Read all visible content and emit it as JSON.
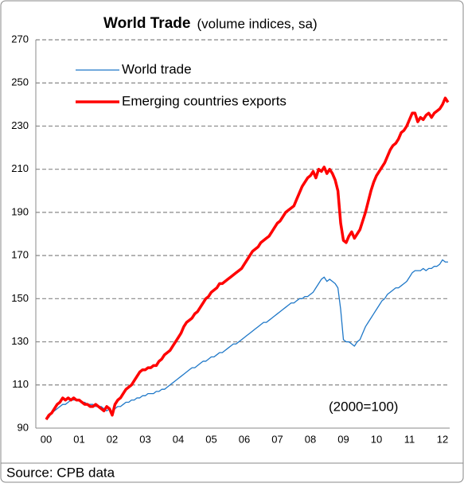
{
  "chart_data": {
    "type": "line",
    "title": "World Trade",
    "subtitle": "(volume indices, sa)",
    "annotation": "(2000=100)",
    "source": "Source: CPB data",
    "categories": [
      "00",
      null,
      null,
      null,
      null,
      null,
      null,
      null,
      null,
      null,
      null,
      null,
      "01",
      null,
      null,
      null,
      null,
      null,
      null,
      null,
      null,
      null,
      null,
      null,
      "02",
      null,
      null,
      null,
      null,
      null,
      null,
      null,
      null,
      null,
      null,
      null,
      "03",
      null,
      null,
      null,
      null,
      null,
      null,
      null,
      null,
      null,
      null,
      null,
      "04",
      null,
      null,
      null,
      null,
      null,
      null,
      null,
      null,
      null,
      null,
      null,
      "05",
      null,
      null,
      null,
      null,
      null,
      null,
      null,
      null,
      null,
      null,
      null,
      "06",
      null,
      null,
      null,
      null,
      null,
      null,
      null,
      null,
      null,
      null,
      null,
      "07",
      null,
      null,
      null,
      null,
      null,
      null,
      null,
      null,
      null,
      null,
      null,
      "08",
      null,
      null,
      null,
      null,
      null,
      null,
      null,
      null,
      null,
      null,
      null,
      "09",
      null,
      null,
      null,
      null,
      null,
      null,
      null,
      null,
      null,
      null,
      null,
      "10",
      null,
      null,
      null,
      null,
      null,
      null,
      null,
      null,
      null,
      null,
      null,
      "11",
      null,
      null,
      null,
      null,
      null,
      null,
      null,
      null,
      null,
      null,
      null,
      "12",
      null,
      null
    ],
    "series": [
      {
        "name": "World trade",
        "color": "#1f78c8",
        "width": 1.3,
        "values": [
          94,
          95,
          97,
          98,
          99,
          100,
          101,
          101,
          102,
          103,
          103,
          103,
          103,
          102,
          102,
          101,
          101,
          101,
          100,
          100,
          100,
          99,
          98,
          99,
          97,
          99,
          100,
          100,
          101,
          102,
          102,
          103,
          103,
          104,
          104,
          105,
          105,
          106,
          106,
          106,
          107,
          107,
          108,
          108,
          109,
          110,
          111,
          112,
          113,
          114,
          115,
          116,
          117,
          118,
          118,
          119,
          120,
          121,
          121,
          122,
          123,
          123,
          124,
          125,
          125,
          126,
          127,
          128,
          129,
          129,
          130,
          131,
          132,
          133,
          134,
          135,
          136,
          137,
          138,
          139,
          139,
          140,
          141,
          142,
          143,
          144,
          145,
          146,
          147,
          148,
          148,
          149,
          150,
          150,
          151,
          151,
          152,
          153,
          155,
          157,
          159,
          160,
          158,
          159,
          158,
          157,
          155,
          145,
          131,
          130,
          130,
          129,
          128,
          130,
          131,
          134,
          137,
          139,
          141,
          143,
          145,
          147,
          149,
          150,
          152,
          153,
          154,
          155,
          155,
          156,
          157,
          158,
          160,
          162,
          163,
          163,
          163,
          164,
          163,
          164,
          164,
          165,
          165,
          166,
          168,
          167,
          167
        ]
      },
      {
        "name": "Emerging countries exports",
        "color": "#ff0000",
        "width": 3.5,
        "values": [
          94,
          96,
          97,
          99,
          101,
          102,
          104,
          103,
          104,
          103,
          104,
          103,
          103,
          102,
          101,
          101,
          100,
          100,
          101,
          100,
          99,
          98,
          100,
          99,
          96,
          101,
          103,
          104,
          106,
          108,
          109,
          110,
          112,
          114,
          116,
          117,
          117,
          118,
          118,
          119,
          119,
          121,
          122,
          124,
          125,
          126,
          128,
          130,
          132,
          134,
          137,
          139,
          140,
          141,
          143,
          144,
          146,
          148,
          150,
          151,
          153,
          154,
          155,
          157,
          157,
          158,
          159,
          160,
          161,
          162,
          163,
          164,
          166,
          168,
          170,
          172,
          173,
          174,
          176,
          177,
          178,
          179,
          181,
          183,
          185,
          186,
          188,
          190,
          191,
          192,
          193,
          196,
          199,
          202,
          204,
          206,
          207,
          209,
          206,
          210,
          209,
          211,
          208,
          210,
          208,
          205,
          200,
          185,
          177,
          176,
          179,
          181,
          178,
          180,
          182,
          186,
          190,
          195,
          200,
          204,
          207,
          209,
          211,
          213,
          216,
          219,
          221,
          222,
          224,
          227,
          228,
          230,
          233,
          236,
          236,
          232,
          234,
          233,
          235,
          236,
          234,
          236,
          237,
          238,
          240,
          243,
          241
        ]
      }
    ],
    "ylim": [
      90,
      270
    ],
    "yticks": [
      90,
      110,
      130,
      150,
      170,
      190,
      210,
      230,
      250,
      270
    ],
    "grid": true,
    "legend": "upper left"
  }
}
